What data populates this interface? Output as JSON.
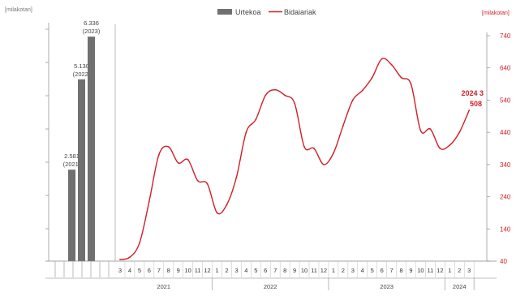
{
  "chart_data": [
    {
      "type": "bar",
      "categories": [
        "2021",
        "2022",
        "2023"
      ],
      "values": [
        2581,
        5130,
        6336
      ],
      "value_labels": [
        "2.581",
        "5.130",
        "6.336"
      ],
      "category_labels": [
        "(2021)",
        "(2022)",
        "(2023)"
      ],
      "ylabel": "[milakotan]",
      "ylim": [
        0,
        6500
      ],
      "series": [
        {
          "name": "Urtekoa",
          "values": [
            2581,
            5130,
            6336
          ],
          "color": "#707070"
        }
      ]
    },
    {
      "type": "line",
      "x_ticks": [
        "3",
        "4",
        "5",
        "6",
        "7",
        "8",
        "9",
        "10",
        "11",
        "12",
        "1",
        "2",
        "3",
        "4",
        "5",
        "6",
        "7",
        "8",
        "9",
        "10",
        "11",
        "12",
        "1",
        "2",
        "3",
        "4",
        "5",
        "6",
        "7",
        "8",
        "9",
        "10",
        "11",
        "12",
        "1",
        "2",
        "3"
      ],
      "x_groups": [
        {
          "label": "2021",
          "start": 0,
          "end": 9
        },
        {
          "label": "2022",
          "start": 10,
          "end": 21
        },
        {
          "label": "2023",
          "start": 22,
          "end": 33
        },
        {
          "label": "2024",
          "start": 34,
          "end": 36
        }
      ],
      "x": [
        "2021-03",
        "2021-04",
        "2021-05",
        "2021-06",
        "2021-07",
        "2021-08",
        "2021-09",
        "2021-10",
        "2021-11",
        "2021-12",
        "2022-01",
        "2022-02",
        "2022-03",
        "2022-04",
        "2022-05",
        "2022-06",
        "2022-07",
        "2022-08",
        "2022-09",
        "2022-10",
        "2022-11",
        "2022-12",
        "2023-01",
        "2023-02",
        "2023-03",
        "2023-04",
        "2023-05",
        "2023-06",
        "2023-07",
        "2023-08",
        "2023-09",
        "2023-10",
        "2023-11",
        "2023-12",
        "2024-01",
        "2024-02",
        "2024-03"
      ],
      "series": [
        {
          "name": "Bidaiariak",
          "color": "#d01f27",
          "values": [
            45,
            52,
            96,
            225,
            370,
            395,
            345,
            355,
            290,
            280,
            190,
            215,
            300,
            440,
            480,
            555,
            572,
            555,
            530,
            395,
            390,
            340,
            375,
            460,
            540,
            570,
            610,
            668,
            650,
            610,
            590,
            445,
            450,
            390,
            400,
            440,
            508
          ]
        }
      ],
      "ylabel": "[milakotan]",
      "ylim": [
        40,
        740
      ],
      "y_ticks": [
        40,
        140,
        240,
        340,
        440,
        540,
        640,
        740
      ],
      "annotation": {
        "lines": [
          "2024 3",
          "508"
        ],
        "index": 36
      }
    }
  ],
  "legend": {
    "items": [
      {
        "name": "Urtekoa",
        "kind": "bar",
        "color": "#707070"
      },
      {
        "name": "Bidaiariak",
        "kind": "line",
        "color": "#d01f27"
      }
    ]
  },
  "units": {
    "left": "[milakotan]",
    "right": "[milakotan]"
  }
}
